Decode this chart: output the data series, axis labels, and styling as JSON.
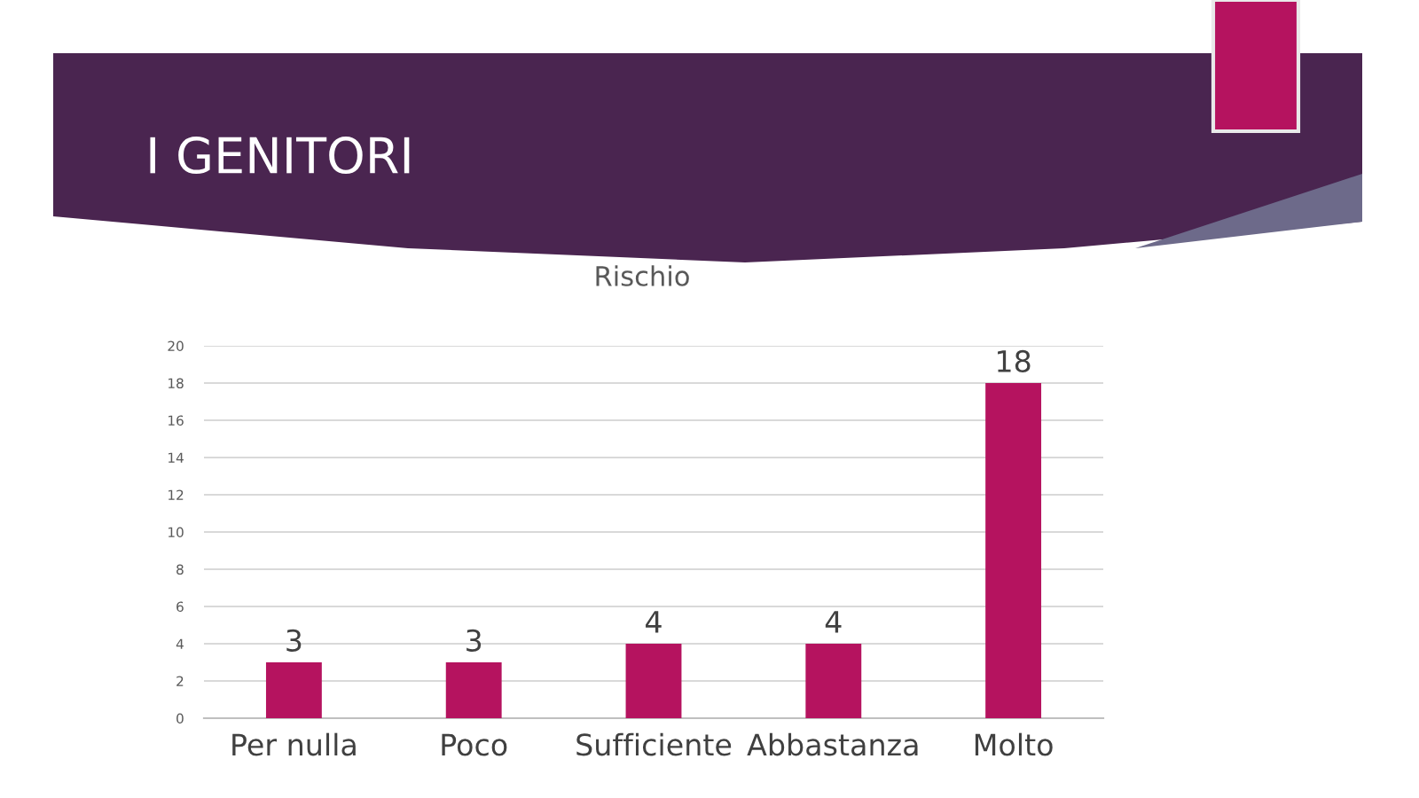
{
  "chart_data": {
    "type": "bar",
    "title": "I GENITORI",
    "subtitle": "Rischio",
    "categories": [
      "Per nulla",
      "Poco",
      "Sufficiente",
      "Abbastanza",
      "Molto"
    ],
    "values": [
      3,
      3,
      4,
      4,
      18
    ],
    "color": "#b5135f",
    "ylim": [
      0,
      20
    ],
    "yticks": [
      0,
      2,
      4,
      6,
      8,
      10,
      12,
      14,
      16,
      18,
      20
    ],
    "grid": "y",
    "data_labels": true,
    "legend": false
  }
}
